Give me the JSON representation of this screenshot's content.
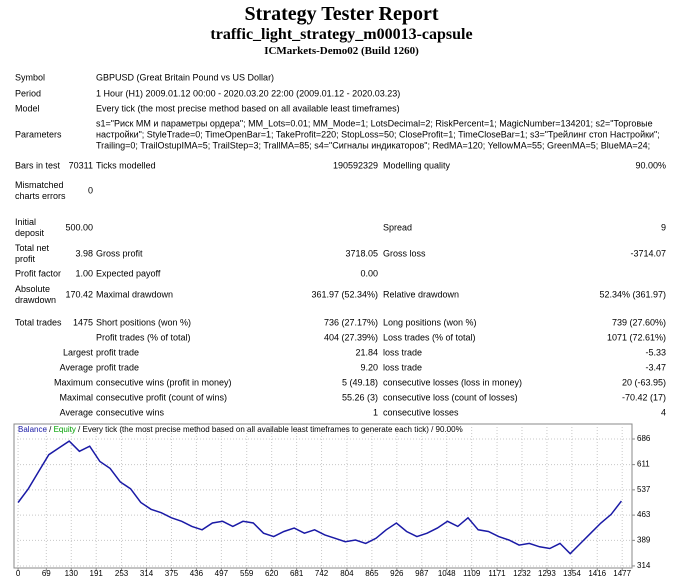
{
  "header": {
    "title": "Strategy Tester Report",
    "subtitle": "traffic_light_strategy_m00013-capsule",
    "build": "ICMarkets-Demo02 (Build 1260)"
  },
  "rows": [
    {
      "label": "Symbol",
      "k2": "GBPUSD (Great Britain Pound vs US Dollar)"
    },
    {
      "label": "Period",
      "k2": "1 Hour (H1) 2009.01.12 00:00 - 2020.03.20 22:00 (2009.01.12 - 2020.03.23)"
    },
    {
      "label": "Model",
      "k2": "Every tick (the most precise method based on all available least timeframes)"
    },
    {
      "label": "Parameters",
      "k2": "s1=\"Риск ММ и параметры ордера\"; MM_Lots=0.01; MM_Mode=1; LotsDecimal=2; RiskPercent=1; MagicNumber=134201; s2=\"Торговые настройки\"; StyleTrade=0; TimeOpenBar=1; TakeProfit=220; StopLoss=50; CloseProfit=1; TimeCloseBar=1; s3=\"Трейлинг стоп Настройки\"; Trailing=0; TrailOstupIMA=5; TrailStep=3; TrallMA=85; s4=\"Сигналы индикаторов\"; RedMA=120; YellowMA=55; GreenMA=5; BlueMA=24;"
    },
    {
      "label": "Bars in test",
      "v1": "70311",
      "k2": "Ticks modelled",
      "v2": "190592329",
      "k3": "Modelling quality",
      "v3": "90.00%"
    },
    {
      "label": "Mismatched charts errors",
      "v1": "0"
    },
    {
      "label": "Initial deposit",
      "v1": "500.00",
      "k3": "Spread",
      "v3": "9"
    },
    {
      "label": "Total net profit",
      "v1": "3.98",
      "k2": "Gross profit",
      "v2": "3718.05",
      "k3": "Gross loss",
      "v3": "-3714.07"
    },
    {
      "label": "Profit factor",
      "v1": "1.00",
      "k2": "Expected payoff",
      "v2": "0.00"
    },
    {
      "label": "Absolute drawdown",
      "v1": "170.42",
      "k2": "Maximal drawdown",
      "v2": "361.97 (52.34%)",
      "k3": "Relative drawdown",
      "v3": "52.34% (361.97)"
    },
    {
      "label": "Total trades",
      "v1": "1475",
      "k2": "Short positions (won %)",
      "v2": "736 (27.17%)",
      "k3": "Long positions (won %)",
      "v3": "739 (27.60%)"
    },
    {
      "k2": "Profit trades (% of total)",
      "v2": "404 (27.39%)",
      "k3": "Loss trades (% of total)",
      "v3": "1071 (72.61%)"
    },
    {
      "sublabel": "Largest",
      "k2": "profit trade",
      "v2": "21.84",
      "k3": "loss trade",
      "v3": "-5.33"
    },
    {
      "sublabel": "Average",
      "k2": "profit trade",
      "v2": "9.20",
      "k3": "loss trade",
      "v3": "-3.47"
    },
    {
      "sublabel": "Maximum",
      "k2": "consecutive wins (profit in money)",
      "v2": "5 (49.18)",
      "k3": "consecutive losses (loss in money)",
      "v3": "20 (-63.95)"
    },
    {
      "sublabel": "Maximal",
      "k2": "consecutive profit (count of wins)",
      "v2": "55.26 (3)",
      "k3": "consecutive loss (count of losses)",
      "v3": "-70.42 (17)"
    },
    {
      "sublabel": "Average",
      "k2": "consecutive wins",
      "v2": "1",
      "k3": "consecutive losses",
      "v3": "4"
    }
  ],
  "chart_data": {
    "type": "line",
    "title": "Every tick (the most precise method based on all available least timeframes to generate each tick) / 90.00%",
    "separator": " / ",
    "legend_extra": {
      "name": "Equity",
      "color": "#00a000"
    },
    "x": [
      0,
      25,
      50,
      75,
      100,
      125,
      150,
      175,
      200,
      225,
      250,
      275,
      300,
      325,
      350,
      375,
      400,
      425,
      450,
      475,
      500,
      525,
      550,
      575,
      600,
      625,
      650,
      675,
      700,
      725,
      750,
      775,
      800,
      825,
      850,
      875,
      900,
      925,
      950,
      975,
      1000,
      1025,
      1050,
      1075,
      1100,
      1125,
      1150,
      1175,
      1200,
      1225,
      1250,
      1275,
      1300,
      1325,
      1350,
      1375,
      1400,
      1425,
      1450,
      1475
    ],
    "series": [
      {
        "name": "Balance",
        "color": "#1a1aa6",
        "values": [
          500,
          540,
          590,
          640,
          660,
          680,
          650,
          665,
          620,
          600,
          560,
          540,
          500,
          480,
          470,
          455,
          445,
          430,
          420,
          440,
          445,
          430,
          445,
          440,
          410,
          400,
          415,
          425,
          410,
          420,
          405,
          395,
          385,
          390,
          380,
          395,
          420,
          440,
          415,
          400,
          410,
          425,
          445,
          430,
          455,
          420,
          415,
          400,
          390,
          375,
          380,
          370,
          365,
          380,
          350,
          380,
          410,
          440,
          465,
          504
        ]
      }
    ],
    "xlim": [
      -10,
      1501
    ],
    "ylim": [
      308,
      730
    ],
    "xticks": [
      0,
      69,
      130,
      191,
      253,
      314,
      375,
      436,
      497,
      559,
      620,
      681,
      742,
      804,
      865,
      926,
      987,
      1048,
      1109,
      1171,
      1232,
      1293,
      1354,
      1416,
      1477
    ],
    "yticks": [
      314,
      389,
      463,
      537,
      611,
      686
    ],
    "grid": true
  }
}
